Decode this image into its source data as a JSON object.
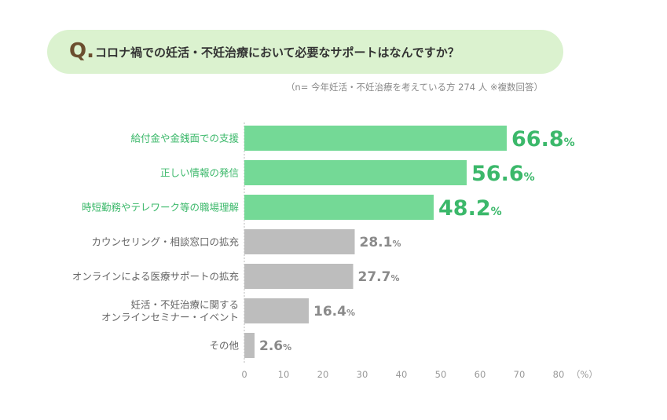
{
  "question": {
    "mark": "Q.",
    "text": "コロナ禍での妊活・不妊治療において必要なサポートはなんですか？"
  },
  "note": "（n= 今年妊活・不妊治療を考えている方 274 人 ※複数回答）",
  "colors": {
    "highlight_bar": "#74d996",
    "highlight_text": "#3bb86a",
    "normal_bar": "#bdbdbd",
    "normal_text": "#8a8a8a",
    "label_normal": "#666666",
    "banner": "#dbf2cf"
  },
  "chart_data": {
    "type": "bar",
    "orientation": "horizontal",
    "categories": [
      [
        "給付金や金銭面での支援"
      ],
      [
        "正しい情報の発信"
      ],
      [
        "時短勤務やテレワーク等の職場理解"
      ],
      [
        "カウンセリング・相談窓口の拡充"
      ],
      [
        "オンラインによる医療サポートの拡充"
      ],
      [
        "妊活・不妊治療に関する",
        "オンラインセミナー・イベント"
      ],
      [
        "その他"
      ]
    ],
    "values": [
      66.8,
      56.6,
      48.2,
      28.1,
      27.7,
      16.4,
      2.6
    ],
    "value_labels": [
      "66.8",
      "56.6",
      "48.2",
      "28.1",
      "27.7",
      "16.4",
      "2.6"
    ],
    "unit": "%",
    "highlighted": [
      true,
      true,
      true,
      false,
      false,
      false,
      false
    ],
    "xlim": [
      0,
      80
    ],
    "xticks": [
      "0",
      "10",
      "20",
      "30",
      "40",
      "50",
      "60",
      "70",
      "80"
    ],
    "xunit": "（%）",
    "grid": false
  }
}
